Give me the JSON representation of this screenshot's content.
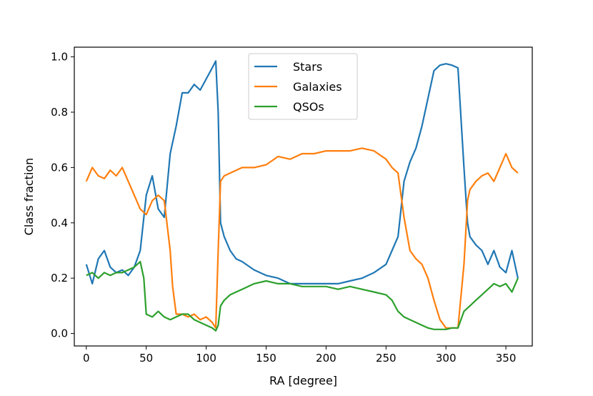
{
  "chart_data": {
    "type": "line",
    "xlabel": "RA [degree]",
    "ylabel": "Class fraction",
    "xlim": [
      -10,
      372
    ],
    "ylim": [
      -0.045,
      1.035
    ],
    "x_ticks": [
      0,
      50,
      100,
      150,
      200,
      250,
      300,
      350
    ],
    "y_ticks": [
      0.0,
      0.2,
      0.4,
      0.6,
      0.8,
      1.0
    ],
    "x_tick_labels": [
      "0",
      "50",
      "100",
      "150",
      "200",
      "250",
      "300",
      "350"
    ],
    "y_tick_labels": [
      "0.0",
      "0.2",
      "0.4",
      "0.6",
      "0.8",
      "1.0"
    ],
    "grid": false,
    "legend_position": "top-center",
    "series": [
      {
        "name": "Stars",
        "color": "#1f77b4",
        "x": [
          0,
          5,
          10,
          15,
          20,
          25,
          30,
          35,
          40,
          45,
          50,
          55,
          60,
          65,
          70,
          75,
          80,
          85,
          90,
          95,
          100,
          105,
          108,
          110,
          112,
          115,
          120,
          125,
          130,
          140,
          150,
          160,
          170,
          180,
          190,
          200,
          210,
          220,
          230,
          240,
          250,
          255,
          260,
          265,
          270,
          275,
          280,
          285,
          290,
          295,
          300,
          305,
          310,
          315,
          318,
          320,
          325,
          330,
          335,
          340,
          345,
          350,
          355,
          360
        ],
        "y": [
          0.25,
          0.18,
          0.27,
          0.3,
          0.24,
          0.22,
          0.23,
          0.21,
          0.24,
          0.3,
          0.5,
          0.57,
          0.45,
          0.42,
          0.65,
          0.75,
          0.87,
          0.87,
          0.9,
          0.88,
          0.92,
          0.96,
          0.985,
          0.8,
          0.4,
          0.35,
          0.3,
          0.27,
          0.26,
          0.23,
          0.21,
          0.2,
          0.18,
          0.18,
          0.18,
          0.18,
          0.18,
          0.19,
          0.2,
          0.22,
          0.25,
          0.3,
          0.35,
          0.55,
          0.62,
          0.67,
          0.75,
          0.85,
          0.95,
          0.97,
          0.975,
          0.97,
          0.96,
          0.6,
          0.4,
          0.35,
          0.32,
          0.3,
          0.25,
          0.3,
          0.24,
          0.22,
          0.3,
          0.2
        ]
      },
      {
        "name": "Galaxies",
        "color": "#ff7f0e",
        "x": [
          0,
          5,
          10,
          15,
          20,
          25,
          30,
          35,
          40,
          45,
          50,
          55,
          60,
          65,
          70,
          72,
          75,
          80,
          85,
          90,
          95,
          100,
          105,
          108,
          110,
          112,
          115,
          120,
          130,
          140,
          150,
          160,
          170,
          180,
          190,
          200,
          210,
          220,
          230,
          240,
          250,
          255,
          260,
          265,
          270,
          275,
          280,
          285,
          290,
          295,
          300,
          305,
          310,
          315,
          318,
          320,
          325,
          330,
          335,
          340,
          345,
          350,
          355,
          360
        ],
        "y": [
          0.55,
          0.6,
          0.57,
          0.56,
          0.59,
          0.57,
          0.6,
          0.55,
          0.5,
          0.45,
          0.43,
          0.48,
          0.5,
          0.48,
          0.3,
          0.17,
          0.07,
          0.07,
          0.06,
          0.07,
          0.05,
          0.06,
          0.04,
          0.02,
          0.3,
          0.55,
          0.57,
          0.58,
          0.6,
          0.6,
          0.61,
          0.64,
          0.63,
          0.65,
          0.65,
          0.66,
          0.66,
          0.66,
          0.67,
          0.66,
          0.63,
          0.6,
          0.58,
          0.42,
          0.3,
          0.27,
          0.25,
          0.2,
          0.12,
          0.05,
          0.02,
          0.02,
          0.02,
          0.25,
          0.48,
          0.52,
          0.55,
          0.57,
          0.58,
          0.55,
          0.6,
          0.65,
          0.6,
          0.58
        ]
      },
      {
        "name": "QSOs",
        "color": "#2ca02c",
        "x": [
          0,
          5,
          10,
          15,
          20,
          25,
          30,
          35,
          40,
          45,
          48,
          50,
          55,
          60,
          65,
          70,
          75,
          80,
          85,
          90,
          95,
          100,
          105,
          108,
          110,
          112,
          115,
          120,
          130,
          140,
          150,
          160,
          170,
          180,
          190,
          200,
          210,
          220,
          230,
          240,
          250,
          255,
          260,
          265,
          270,
          275,
          280,
          285,
          290,
          295,
          300,
          305,
          310,
          315,
          320,
          325,
          330,
          335,
          340,
          345,
          350,
          355,
          360
        ],
        "y": [
          0.21,
          0.22,
          0.2,
          0.22,
          0.21,
          0.22,
          0.22,
          0.23,
          0.24,
          0.26,
          0.2,
          0.07,
          0.06,
          0.08,
          0.06,
          0.05,
          0.06,
          0.07,
          0.07,
          0.05,
          0.04,
          0.03,
          0.02,
          0.01,
          0.03,
          0.1,
          0.12,
          0.14,
          0.16,
          0.18,
          0.19,
          0.18,
          0.18,
          0.17,
          0.17,
          0.17,
          0.16,
          0.17,
          0.16,
          0.15,
          0.14,
          0.12,
          0.08,
          0.06,
          0.05,
          0.04,
          0.03,
          0.02,
          0.015,
          0.015,
          0.015,
          0.02,
          0.02,
          0.08,
          0.1,
          0.12,
          0.14,
          0.16,
          0.18,
          0.17,
          0.18,
          0.15,
          0.2
        ]
      }
    ]
  }
}
